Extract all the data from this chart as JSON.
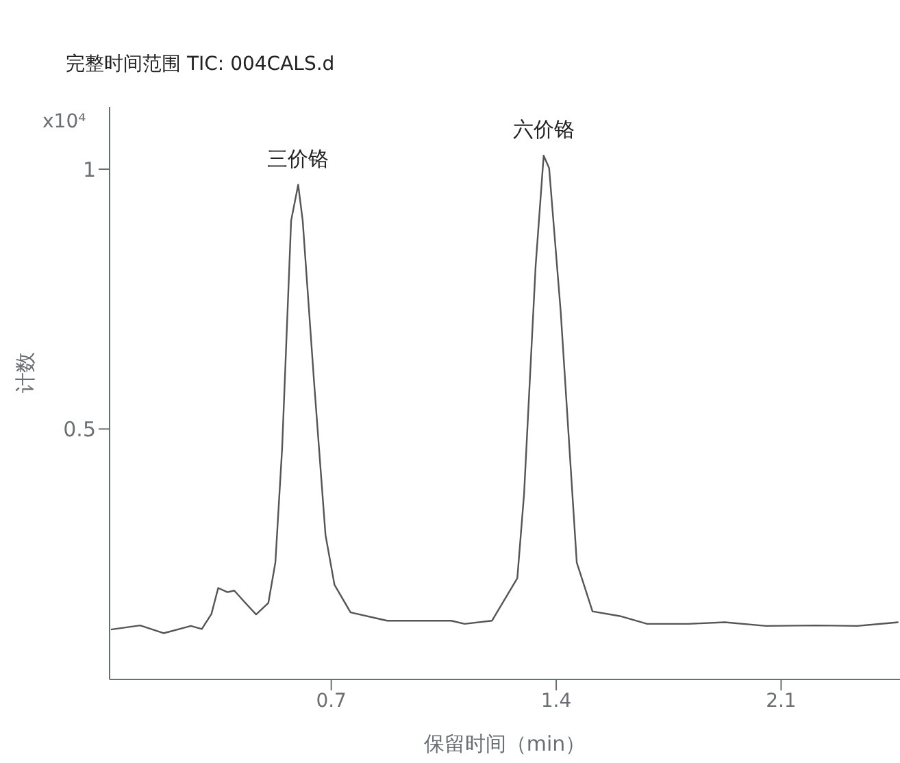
{
  "chart_data": {
    "type": "line",
    "title": "完整时间范围 TIC: 004CALS.d",
    "xlabel": "保留时间（min）",
    "ylabel": "计数",
    "annotations": [
      "x10⁴",
      {
        "text": "三价铬",
        "x": 0.597,
        "y": 0.97
      },
      {
        "text": "六价铬",
        "x": 1.361,
        "y": 1.026
      }
    ],
    "x": [
      0.014,
      0.105,
      0.178,
      0.263,
      0.297,
      0.327,
      0.348,
      0.377,
      0.398,
      0.433,
      0.466,
      0.504,
      0.526,
      0.547,
      0.575,
      0.597,
      0.611,
      0.646,
      0.682,
      0.71,
      0.76,
      0.874,
      1.073,
      1.115,
      1.2,
      1.279,
      1.3,
      1.336,
      1.361,
      1.378,
      1.414,
      1.464,
      1.513,
      1.598,
      1.683,
      1.811,
      1.925,
      2.053,
      2.209,
      2.337,
      2.465
    ],
    "series": [
      {
        "color": "#555555",
        "values": [
          0.114,
          0.122,
          0.107,
          0.121,
          0.115,
          0.144,
          0.194,
          0.186,
          0.189,
          0.165,
          0.143,
          0.165,
          0.243,
          0.463,
          0.901,
          0.97,
          0.901,
          0.594,
          0.296,
          0.2,
          0.147,
          0.131,
          0.131,
          0.125,
          0.131,
          0.213,
          0.375,
          0.814,
          1.026,
          1.002,
          0.726,
          0.243,
          0.149,
          0.14,
          0.125,
          0.125,
          0.128,
          0.121,
          0.122,
          0.121,
          0.128
        ]
      }
    ],
    "xlim": [
      0.01,
      2.47
    ],
    "ylim": [
      0.018,
      1.12
    ],
    "xticks": [
      0.7,
      1.4,
      2.1
    ],
    "yticks": [
      1,
      0.5
    ],
    "grid": false,
    "legend": false,
    "marker": "none",
    "line_style": "solid"
  }
}
